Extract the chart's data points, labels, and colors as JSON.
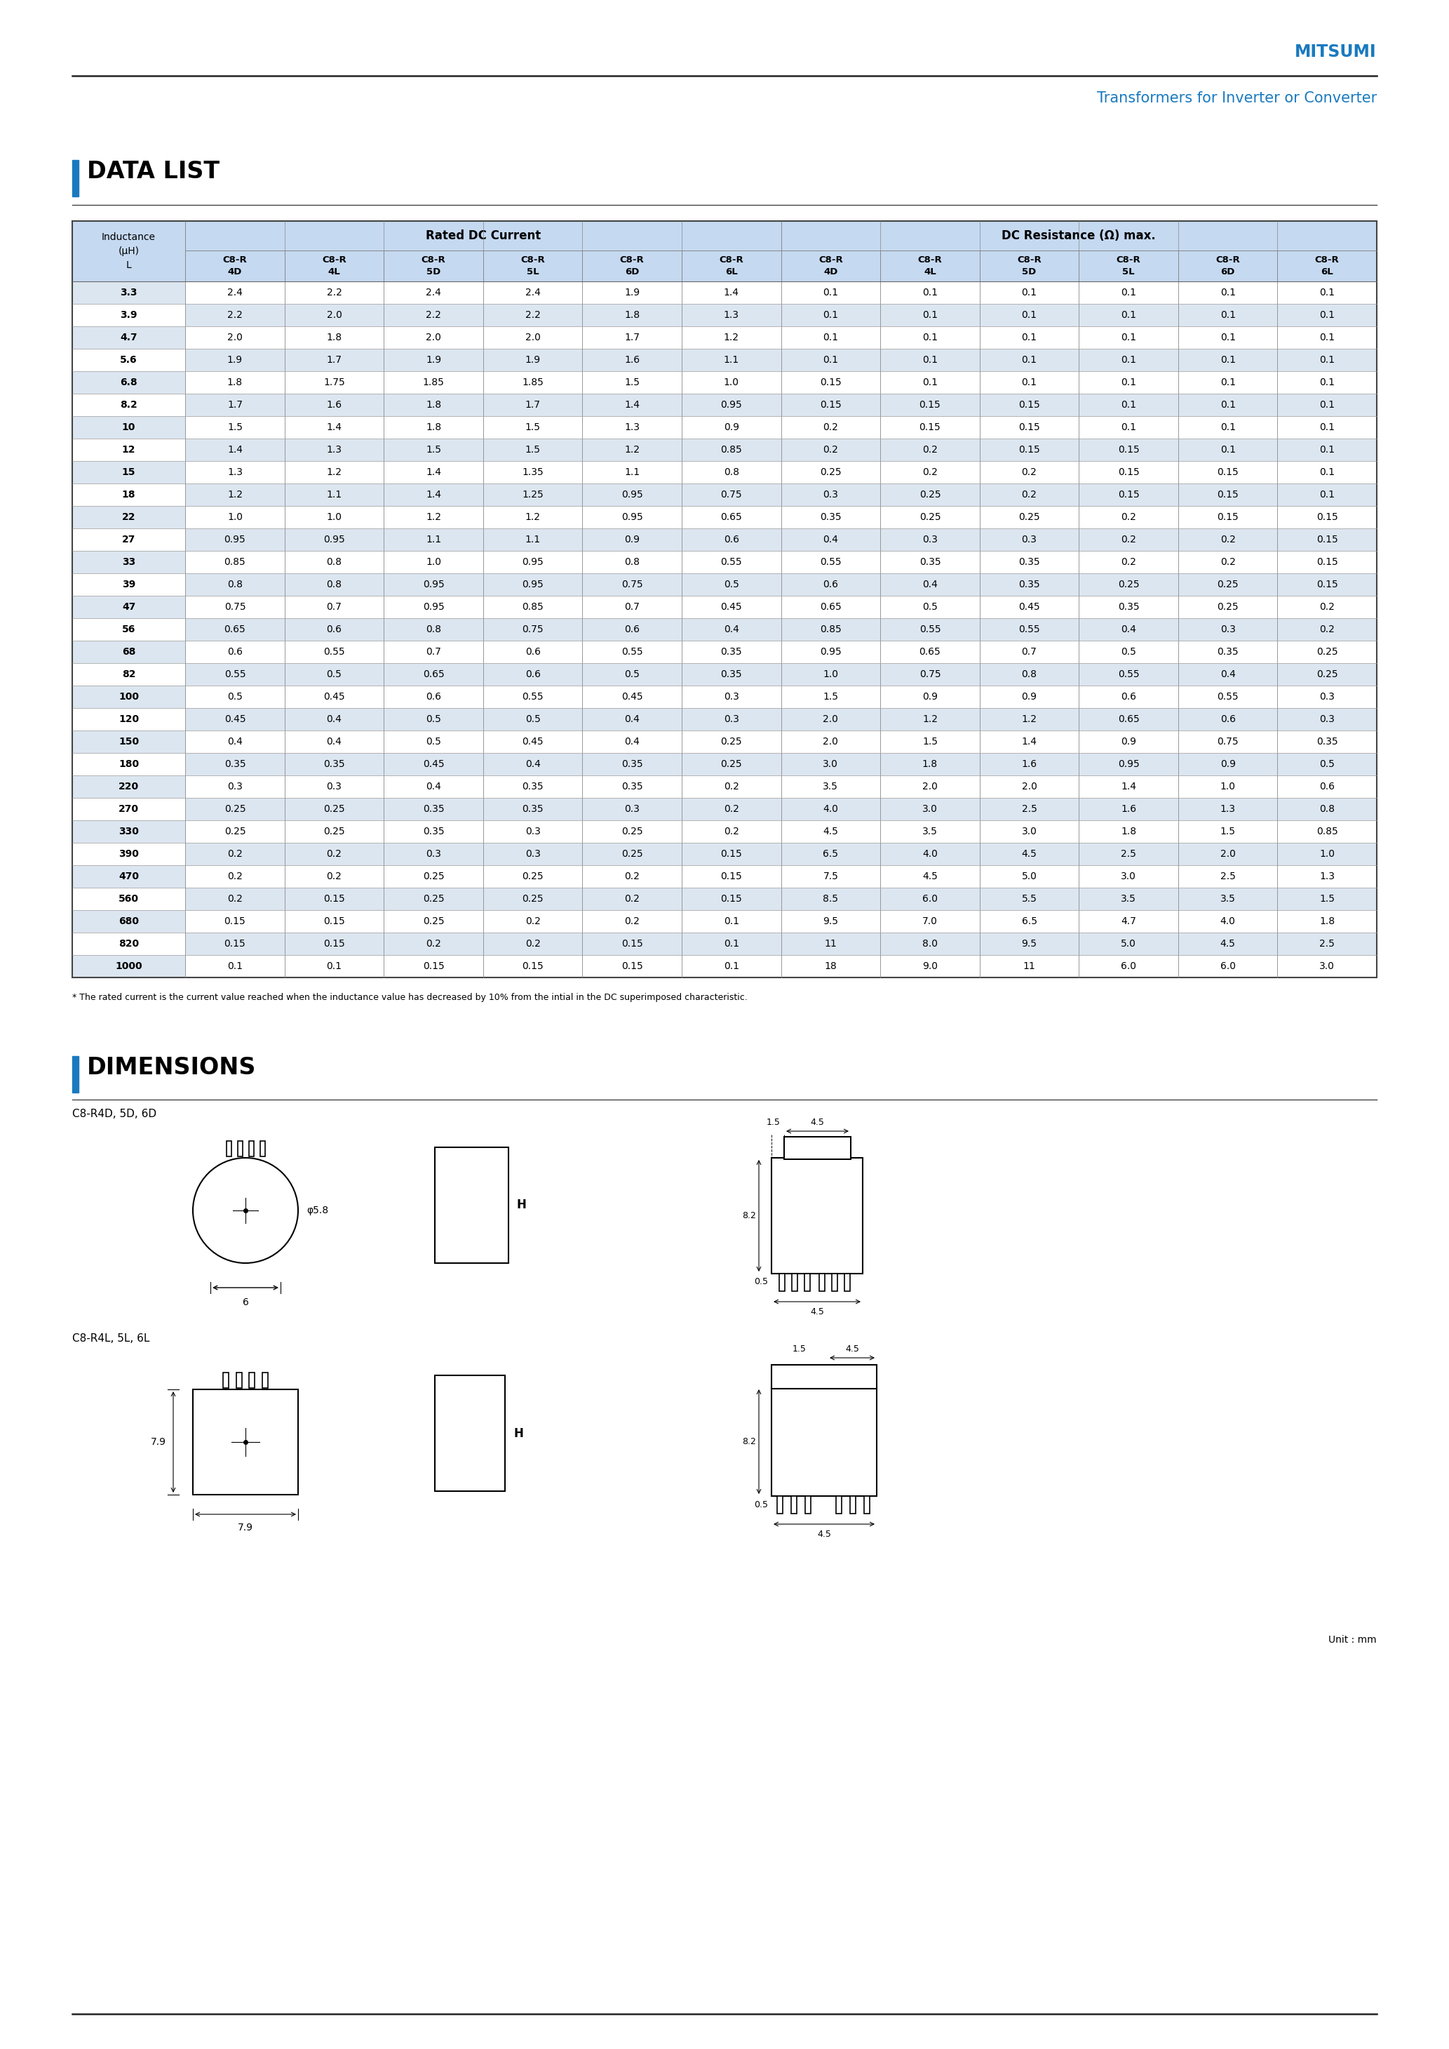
{
  "title_company": "MITSUMI",
  "title_product": "Transformers for Inverter or Converter",
  "section1_title": "DATA LIST",
  "section2_title": "DIMENSIONS",
  "table_header_group1": "Rated DC Current",
  "table_header_group2": "DC Resistance (Ω) max.",
  "table_rows": [
    [
      "3.3",
      "2.4",
      "2.2",
      "2.4",
      "2.4",
      "1.9",
      "1.4",
      "0.1",
      "0.1",
      "0.1",
      "0.1",
      "0.1",
      "0.1"
    ],
    [
      "3.9",
      "2.2",
      "2.0",
      "2.2",
      "2.2",
      "1.8",
      "1.3",
      "0.1",
      "0.1",
      "0.1",
      "0.1",
      "0.1",
      "0.1"
    ],
    [
      "4.7",
      "2.0",
      "1.8",
      "2.0",
      "2.0",
      "1.7",
      "1.2",
      "0.1",
      "0.1",
      "0.1",
      "0.1",
      "0.1",
      "0.1"
    ],
    [
      "5.6",
      "1.9",
      "1.7",
      "1.9",
      "1.9",
      "1.6",
      "1.1",
      "0.1",
      "0.1",
      "0.1",
      "0.1",
      "0.1",
      "0.1"
    ],
    [
      "6.8",
      "1.8",
      "1.75",
      "1.85",
      "1.85",
      "1.5",
      "1.0",
      "0.15",
      "0.1",
      "0.1",
      "0.1",
      "0.1",
      "0.1"
    ],
    [
      "8.2",
      "1.7",
      "1.6",
      "1.8",
      "1.7",
      "1.4",
      "0.95",
      "0.15",
      "0.15",
      "0.15",
      "0.1",
      "0.1",
      "0.1"
    ],
    [
      "10",
      "1.5",
      "1.4",
      "1.8",
      "1.5",
      "1.3",
      "0.9",
      "0.2",
      "0.15",
      "0.15",
      "0.1",
      "0.1",
      "0.1"
    ],
    [
      "12",
      "1.4",
      "1.3",
      "1.5",
      "1.5",
      "1.2",
      "0.85",
      "0.2",
      "0.2",
      "0.15",
      "0.15",
      "0.1",
      "0.1"
    ],
    [
      "15",
      "1.3",
      "1.2",
      "1.4",
      "1.35",
      "1.1",
      "0.8",
      "0.25",
      "0.2",
      "0.2",
      "0.15",
      "0.15",
      "0.1"
    ],
    [
      "18",
      "1.2",
      "1.1",
      "1.4",
      "1.25",
      "0.95",
      "0.75",
      "0.3",
      "0.25",
      "0.2",
      "0.15",
      "0.15",
      "0.1"
    ],
    [
      "22",
      "1.0",
      "1.0",
      "1.2",
      "1.2",
      "0.95",
      "0.65",
      "0.35",
      "0.25",
      "0.25",
      "0.2",
      "0.15",
      "0.15"
    ],
    [
      "27",
      "0.95",
      "0.95",
      "1.1",
      "1.1",
      "0.9",
      "0.6",
      "0.4",
      "0.3",
      "0.3",
      "0.2",
      "0.2",
      "0.15"
    ],
    [
      "33",
      "0.85",
      "0.8",
      "1.0",
      "0.95",
      "0.8",
      "0.55",
      "0.55",
      "0.35",
      "0.35",
      "0.2",
      "0.2",
      "0.15"
    ],
    [
      "39",
      "0.8",
      "0.8",
      "0.95",
      "0.95",
      "0.75",
      "0.5",
      "0.6",
      "0.4",
      "0.35",
      "0.25",
      "0.25",
      "0.15"
    ],
    [
      "47",
      "0.75",
      "0.7",
      "0.95",
      "0.85",
      "0.7",
      "0.45",
      "0.65",
      "0.5",
      "0.45",
      "0.35",
      "0.25",
      "0.2"
    ],
    [
      "56",
      "0.65",
      "0.6",
      "0.8",
      "0.75",
      "0.6",
      "0.4",
      "0.85",
      "0.55",
      "0.55",
      "0.4",
      "0.3",
      "0.2"
    ],
    [
      "68",
      "0.6",
      "0.55",
      "0.7",
      "0.6",
      "0.55",
      "0.35",
      "0.95",
      "0.65",
      "0.7",
      "0.5",
      "0.35",
      "0.25"
    ],
    [
      "82",
      "0.55",
      "0.5",
      "0.65",
      "0.6",
      "0.5",
      "0.35",
      "1.0",
      "0.75",
      "0.8",
      "0.55",
      "0.4",
      "0.25"
    ],
    [
      "100",
      "0.5",
      "0.45",
      "0.6",
      "0.55",
      "0.45",
      "0.3",
      "1.5",
      "0.9",
      "0.9",
      "0.6",
      "0.55",
      "0.3"
    ],
    [
      "120",
      "0.45",
      "0.4",
      "0.5",
      "0.5",
      "0.4",
      "0.3",
      "2.0",
      "1.2",
      "1.2",
      "0.65",
      "0.6",
      "0.3"
    ],
    [
      "150",
      "0.4",
      "0.4",
      "0.5",
      "0.45",
      "0.4",
      "0.25",
      "2.0",
      "1.5",
      "1.4",
      "0.9",
      "0.75",
      "0.35"
    ],
    [
      "180",
      "0.35",
      "0.35",
      "0.45",
      "0.4",
      "0.35",
      "0.25",
      "3.0",
      "1.8",
      "1.6",
      "0.95",
      "0.9",
      "0.5"
    ],
    [
      "220",
      "0.3",
      "0.3",
      "0.4",
      "0.35",
      "0.35",
      "0.2",
      "3.5",
      "2.0",
      "2.0",
      "1.4",
      "1.0",
      "0.6"
    ],
    [
      "270",
      "0.25",
      "0.25",
      "0.35",
      "0.35",
      "0.3",
      "0.2",
      "4.0",
      "3.0",
      "2.5",
      "1.6",
      "1.3",
      "0.8"
    ],
    [
      "330",
      "0.25",
      "0.25",
      "0.35",
      "0.3",
      "0.25",
      "0.2",
      "4.5",
      "3.5",
      "3.0",
      "1.8",
      "1.5",
      "0.85"
    ],
    [
      "390",
      "0.2",
      "0.2",
      "0.3",
      "0.3",
      "0.25",
      "0.15",
      "6.5",
      "4.0",
      "4.5",
      "2.5",
      "2.0",
      "1.0"
    ],
    [
      "470",
      "0.2",
      "0.2",
      "0.25",
      "0.25",
      "0.2",
      "0.15",
      "7.5",
      "4.5",
      "5.0",
      "3.0",
      "2.5",
      "1.3"
    ],
    [
      "560",
      "0.2",
      "0.15",
      "0.25",
      "0.25",
      "0.2",
      "0.15",
      "8.5",
      "6.0",
      "5.5",
      "3.5",
      "3.5",
      "1.5"
    ],
    [
      "680",
      "0.15",
      "0.15",
      "0.25",
      "0.2",
      "0.2",
      "0.1",
      "9.5",
      "7.0",
      "6.5",
      "4.7",
      "4.0",
      "1.8"
    ],
    [
      "820",
      "0.15",
      "0.15",
      "0.2",
      "0.2",
      "0.15",
      "0.1",
      "11",
      "8.0",
      "9.5",
      "5.0",
      "4.5",
      "2.5"
    ],
    [
      "1000",
      "0.1",
      "0.1",
      "0.15",
      "0.15",
      "0.15",
      "0.1",
      "18",
      "9.0",
      "11",
      "6.0",
      "6.0",
      "3.0"
    ]
  ],
  "footnote": "* The rated current is the current value reached when the inductance value has decreased by 10% from the intial in the DC superimposed characteristic.",
  "dim_label1": "C8-R4D, 5D, 6D",
  "dim_label2": "C8-R4L, 5L, 6L",
  "unit_label": "Unit : mm",
  "blue_color": "#1a7abf",
  "header_bg": "#c5d9f1",
  "row_alt_bg": "#dce6f1",
  "row_normal_bg": "#ffffff"
}
